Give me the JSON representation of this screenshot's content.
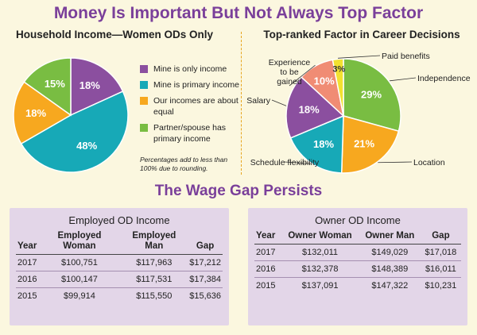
{
  "title": "Money Is Important But Not Always Top Factor",
  "footnote": "Percentages add to less than 100% due to rounding.",
  "section2_title": "The Wage Gap Persists",
  "chart_data": [
    {
      "type": "pie",
      "title": "Household Income—Women ODs Only",
      "legend_position": "right",
      "slices": [
        {
          "label": "Mine is only income",
          "value": 18,
          "value_label": "18%",
          "color": "#8b4f9f"
        },
        {
          "label": "Mine is primary income",
          "value": 48,
          "value_label": "48%",
          "color": "#17a9b7"
        },
        {
          "label": "Our incomes are about equal",
          "value": 18,
          "value_label": "18%",
          "color": "#f7a81f"
        },
        {
          "label": "Partner/spouse has primary income",
          "value": 15,
          "value_label": "15%",
          "color": "#79bd42"
        }
      ]
    },
    {
      "type": "pie",
      "title": "Top-ranked Factor in Career Decisions",
      "slices": [
        {
          "label": "Independence",
          "value": 29,
          "value_label": "29%",
          "color": "#79bd42"
        },
        {
          "label": "Location",
          "value": 21,
          "value_label": "21%",
          "color": "#f7a81f"
        },
        {
          "label": "Schedule flexibility",
          "value": 18,
          "value_label": "18%",
          "color": "#17a9b7"
        },
        {
          "label": "Salary",
          "value": 18,
          "value_label": "18%",
          "color": "#8b4f9f"
        },
        {
          "label": "Experience to be gained",
          "value": 10,
          "value_label": "10%",
          "color": "#f08c74"
        },
        {
          "label": "Paid benefits",
          "value": 3,
          "value_label": "3%",
          "color": "#f2e130"
        }
      ]
    },
    {
      "type": "table",
      "title": "Employed OD Income",
      "columns": [
        "Year",
        "Employed Woman",
        "Employed Man",
        "Gap"
      ],
      "rows": [
        [
          "2017",
          "$100,751",
          "$117,963",
          "$17,212"
        ],
        [
          "2016",
          "$100,147",
          "$117,531",
          "$17,384"
        ],
        [
          "2015",
          "$99,914",
          "$115,550",
          "$15,636"
        ]
      ]
    },
    {
      "type": "table",
      "title": "Owner OD Income",
      "columns": [
        "Year",
        "Owner Woman",
        "Owner Man",
        "Gap"
      ],
      "rows": [
        [
          "2017",
          "$132,011",
          "$149,029",
          "$17,018"
        ],
        [
          "2016",
          "$132,378",
          "$148,389",
          "$16,011"
        ],
        [
          "2015",
          "$137,091",
          "$147,322",
          "$10,231"
        ]
      ]
    }
  ]
}
